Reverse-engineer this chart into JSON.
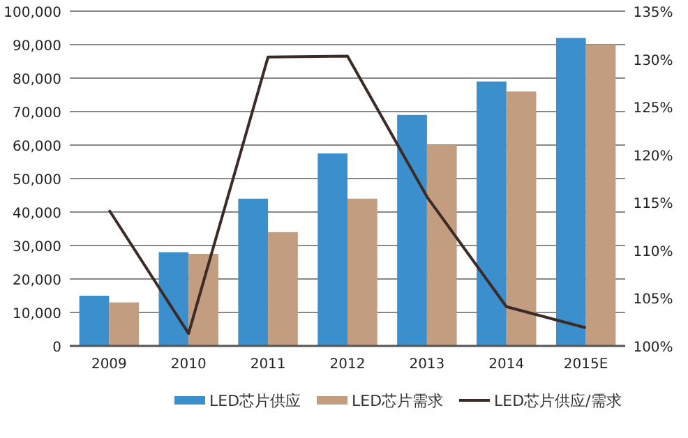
{
  "chart_data": {
    "type": "bar",
    "categories": [
      "2009",
      "2010",
      "2011",
      "2012",
      "2013",
      "2014",
      "2015E"
    ],
    "series": [
      {
        "name": "LED芯片供应",
        "color": "#3a8fcc",
        "values": [
          15000,
          28000,
          44000,
          57500,
          69000,
          79000,
          92000
        ]
      },
      {
        "name": "LED芯片需求",
        "color": "#c29d7f",
        "values": [
          13000,
          27500,
          34000,
          44000,
          60000,
          76000,
          90000
        ]
      },
      {
        "name": "LED芯片供应/需求",
        "type": "line",
        "axis": "y2",
        "color": "#3b2a25",
        "values": [
          114.2,
          101.3,
          130.2,
          130.3,
          115.6,
          104.1,
          101.9
        ]
      }
    ],
    "ylim": [
      0,
      100000
    ],
    "yticks": [
      {
        "value": 0,
        "label": "0"
      },
      {
        "value": 10000,
        "label": "10,000"
      },
      {
        "value": 20000,
        "label": "20,000"
      },
      {
        "value": 30000,
        "label": "30,000"
      },
      {
        "value": 40000,
        "label": "40,000"
      },
      {
        "value": 50000,
        "label": "50,000"
      },
      {
        "value": 60000,
        "label": "60,000"
      },
      {
        "value": 70000,
        "label": "70,000"
      },
      {
        "value": 80000,
        "label": "80,000"
      },
      {
        "value": 90000,
        "label": "90,000"
      },
      {
        "value": 100000,
        "label": "100,000"
      }
    ],
    "y2lim": [
      100,
      135
    ],
    "y2ticks": [
      {
        "value": 100,
        "label": "100%"
      },
      {
        "value": 105,
        "label": "105%"
      },
      {
        "value": 110,
        "label": "110%"
      },
      {
        "value": 115,
        "label": "115%"
      },
      {
        "value": 120,
        "label": "120%"
      },
      {
        "value": 125,
        "label": "125%"
      },
      {
        "value": 130,
        "label": "130%"
      },
      {
        "value": 135,
        "label": "135%"
      }
    ],
    "grid": "y",
    "legend": "bottom",
    "marker": "none",
    "line_style": "solid"
  }
}
